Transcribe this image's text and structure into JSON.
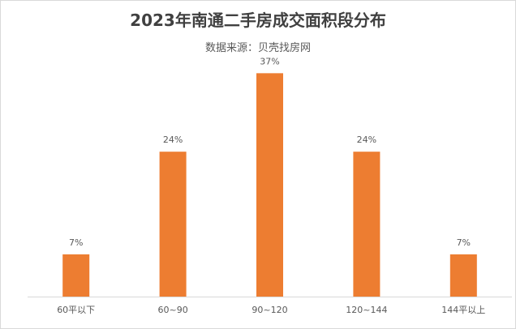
{
  "chart_data": {
    "type": "bar",
    "title": "2023年南通二手房成交面积段分布",
    "subtitle": "数据来源：贝壳找房网",
    "categories": [
      "60平以下",
      "60~90",
      "90~120",
      "120~144",
      "144平以上"
    ],
    "series": [
      {
        "values": [
          7,
          24,
          37,
          24,
          7
        ],
        "data_labels": [
          "7%",
          "24%",
          "37%",
          "24%",
          "7%"
        ]
      }
    ],
    "ylim": [
      0,
      40
    ],
    "grid": false,
    "legend": "none",
    "colors": {
      "bar": "#ED7D31",
      "axis": "#D9D9D9",
      "text": "#595959",
      "title": "#404040"
    }
  }
}
